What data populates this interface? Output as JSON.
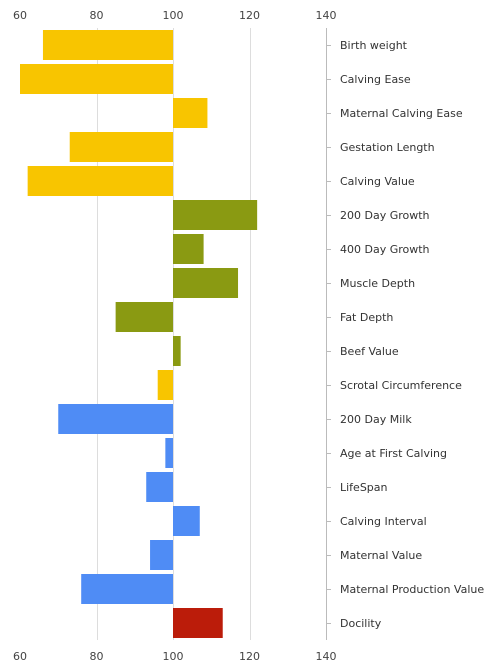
{
  "chart_data": {
    "type": "bar",
    "orientation": "horizontal",
    "baseline": 100,
    "xlim": [
      60,
      140
    ],
    "xticks": [
      60,
      80,
      100,
      120,
      140
    ],
    "xtick_labels": [
      "60",
      "80",
      "100",
      "120",
      "140"
    ],
    "tick_labels_position": "top and bottom",
    "category_labels_position": "right",
    "grid": true,
    "title": "",
    "xlabel": "",
    "ylabel": "",
    "categories": [
      "Birth weight",
      "Calving Ease",
      "Maternal Calving Ease",
      "Gestation Length",
      "Calving Value",
      "200 Day Growth",
      "400 Day Growth",
      "Muscle Depth",
      "Fat Depth",
      "Beef Value",
      "Scrotal Circumference",
      "200 Day Milk",
      "Age at First Calving",
      "LifeSpan",
      "Calving Interval",
      "Maternal Value",
      "Maternal Production Value",
      "Docility"
    ],
    "values": [
      66,
      60,
      109,
      73,
      62,
      122,
      108,
      117,
      85,
      102,
      96,
      70,
      98,
      93,
      107,
      94,
      76,
      113
    ],
    "colors": [
      "#f8c500",
      "#f8c500",
      "#f8c500",
      "#f8c500",
      "#f8c500",
      "#8a9a12",
      "#8a9a12",
      "#8a9a12",
      "#8a9a12",
      "#8a9a12",
      "#f8c500",
      "#4f8cf5",
      "#4f8cf5",
      "#4f8cf5",
      "#4f8cf5",
      "#4f8cf5",
      "#4f8cf5",
      "#bb1c0a"
    ],
    "grid_color": "#dddddd",
    "axis_color": "#bbbbbb"
  }
}
